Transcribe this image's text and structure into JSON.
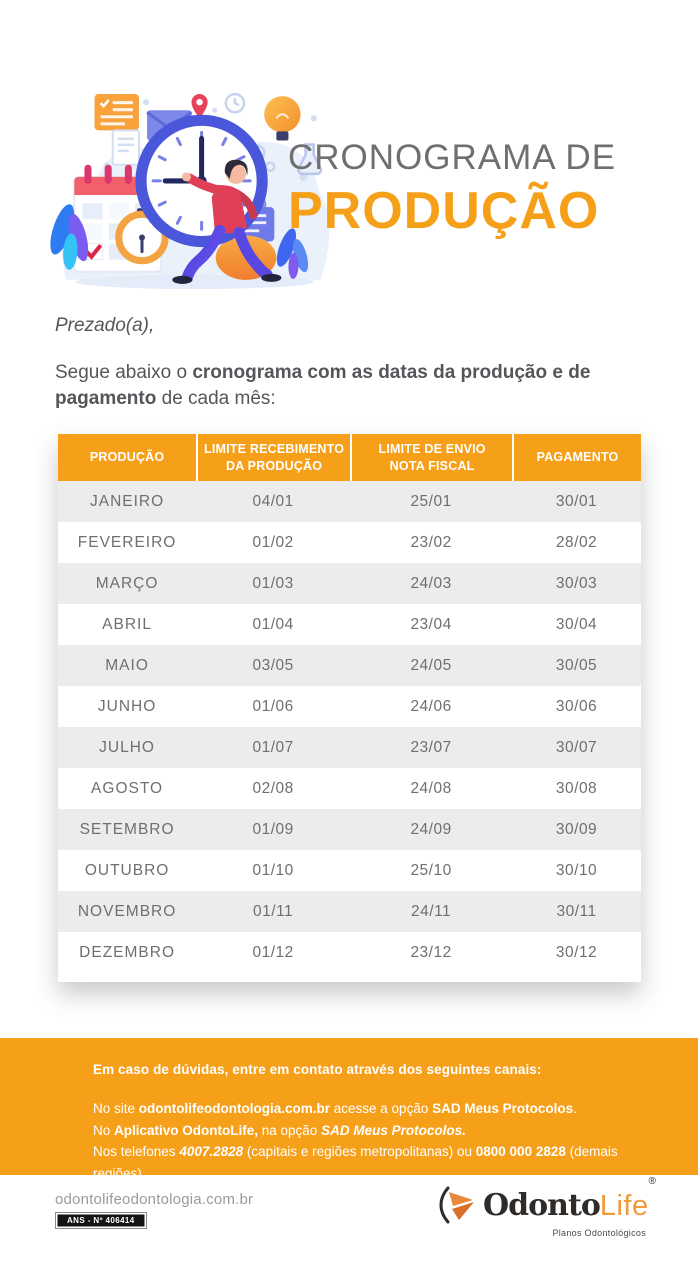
{
  "colors": {
    "accent_orange": "#F6A01A",
    "title_gray": "#6F6F6F",
    "body_text": "#55565A",
    "table_row_alt": "#ECECEC",
    "table_text": "#6E6F72"
  },
  "header": {
    "title_line1": "CRONOGRAMA DE",
    "title_line2": "PRODUÇÃO",
    "illustration": "clock-calendar-person-illustration"
  },
  "intro": {
    "salutation": "Prezado(a),",
    "segments": [
      {
        "t": "Segue abaixo o "
      },
      {
        "t": "cronograma com as datas da produção e de pagamento",
        "b": true
      },
      {
        "t": " de cada mês:"
      }
    ]
  },
  "table": {
    "headers": [
      [
        "PRODUÇÃO"
      ],
      [
        "LIMITE RECEBIMENTO",
        "DA PRODUÇÃO"
      ],
      [
        "LIMITE DE ENVIO",
        "NOTA FISCAL"
      ],
      [
        "PAGAMENTO"
      ]
    ],
    "rows": [
      {
        "month": "JANEIRO",
        "receipt": "04/01",
        "invoice": "25/01",
        "payment": "30/01"
      },
      {
        "month": "FEVEREIRO",
        "receipt": "01/02",
        "invoice": "23/02",
        "payment": "28/02"
      },
      {
        "month": "MARÇO",
        "receipt": "01/03",
        "invoice": "24/03",
        "payment": "30/03"
      },
      {
        "month": "ABRIL",
        "receipt": "01/04",
        "invoice": "23/04",
        "payment": "30/04"
      },
      {
        "month": "MAIO",
        "receipt": "03/05",
        "invoice": "24/05",
        "payment": "30/05"
      },
      {
        "month": "JUNHO",
        "receipt": "01/06",
        "invoice": "24/06",
        "payment": "30/06"
      },
      {
        "month": "JULHO",
        "receipt": "01/07",
        "invoice": "23/07",
        "payment": "30/07"
      },
      {
        "month": "AGOSTO",
        "receipt": "02/08",
        "invoice": "24/08",
        "payment": "30/08"
      },
      {
        "month": "SETEMBRO",
        "receipt": "01/09",
        "invoice": "24/09",
        "payment": "30/09"
      },
      {
        "month": "OUTUBRO",
        "receipt": "01/10",
        "invoice": "25/10",
        "payment": "30/10"
      },
      {
        "month": "NOVEMBRO",
        "receipt": "01/11",
        "invoice": "24/11",
        "payment": "30/11"
      },
      {
        "month": "DEZEMBRO",
        "receipt": "01/12",
        "invoice": "23/12",
        "payment": "30/12"
      }
    ]
  },
  "contact": {
    "heading": "Em caso de dúvidas, entre em contato através dos seguintes canais:",
    "lines": [
      [
        {
          "t": "No site "
        },
        {
          "t": "odontolifeodontologia.com.br",
          "b": true
        },
        {
          "t": " acesse a opção "
        },
        {
          "t": "SAD Meus Protocolos",
          "b": true
        },
        {
          "t": "."
        }
      ],
      [
        {
          "t": "No "
        },
        {
          "t": "Aplicativo OdontoLife,",
          "b": true
        },
        {
          "t": " na opção "
        },
        {
          "t": "SAD Meus Protocolos.",
          "b": true,
          "i": true
        }
      ],
      [
        {
          "t": "Nos telefones "
        },
        {
          "t": "4007.2828",
          "b": true,
          "i": true
        },
        {
          "t": " (capitais e regiões metropolitanas) ou "
        },
        {
          "t": "0800 000 2828",
          "b": true
        },
        {
          "t": " (demais regiões)."
        }
      ]
    ]
  },
  "footer": {
    "website": "odontolifeodontologia.com.br",
    "ans_badge": "ANS - Nº 406414",
    "logo": {
      "part1": "Odonto",
      "part2": "Life",
      "registered": "®",
      "tagline": "Planos Odontológicos"
    }
  }
}
